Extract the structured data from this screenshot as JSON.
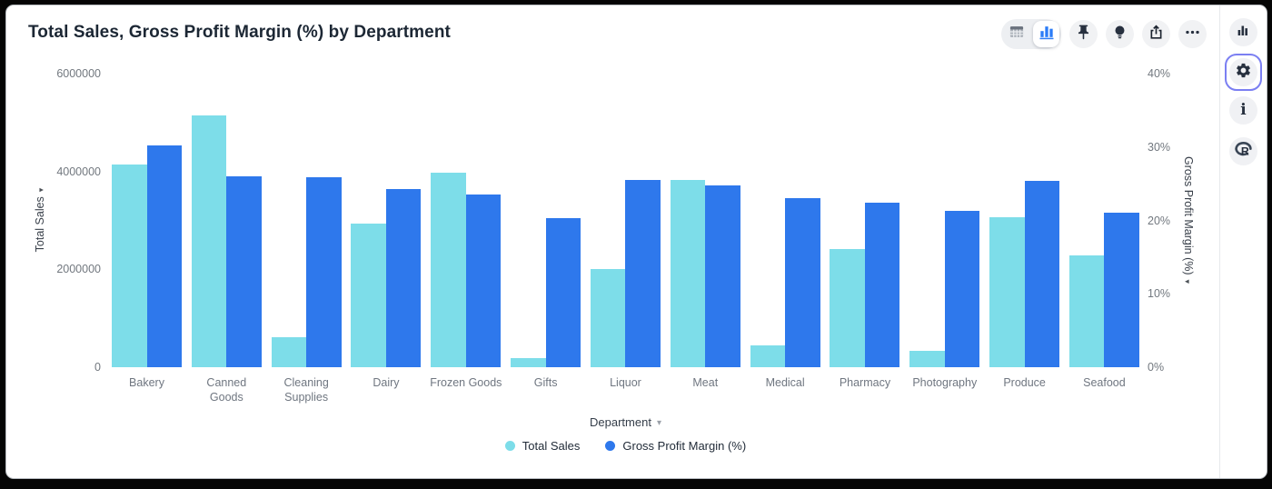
{
  "window": {
    "title": "Total Sales, Gross Profit Margin (%) by Department"
  },
  "toolbar": {
    "icons": [
      "table-view-toggle",
      "chart-view-toggle",
      "pin",
      "lightbulb",
      "export",
      "more-options"
    ],
    "selected_view": "chart",
    "accent_color": "#2b7cf7"
  },
  "sidebar": {
    "icons": [
      "chart-panel",
      "settings-gear",
      "info",
      "r-logo"
    ],
    "active": "settings-gear",
    "active_border_color": "#7b7ff2"
  },
  "chart_data": {
    "type": "bar",
    "title": "Total Sales, Gross Profit Margin (%) by Department",
    "xlabel": "Department",
    "grid": false,
    "legend_position": "bottom",
    "categories": [
      "Bakery",
      "Canned Goods",
      "Cleaning Supplies",
      "Dairy",
      "Frozen Goods",
      "Gifts",
      "Liquor",
      "Meat",
      "Medical",
      "Pharmacy",
      "Photography",
      "Produce",
      "Seafood"
    ],
    "series": [
      {
        "name": "Total Sales",
        "axis": "left",
        "color": "#7ddde9",
        "values": [
          4150000,
          5150000,
          620000,
          2930000,
          3980000,
          180000,
          2000000,
          3820000,
          440000,
          2420000,
          330000,
          3070000,
          2280000
        ]
      },
      {
        "name": "Gross Profit Margin (%)",
        "axis": "right",
        "color": "#2e78ec",
        "values": [
          30.2,
          26.0,
          25.9,
          24.3,
          23.5,
          20.3,
          25.5,
          24.8,
          23.0,
          22.4,
          21.3,
          25.4,
          21.1
        ]
      }
    ],
    "left_axis": {
      "label": "Total Sales",
      "max": 6000000,
      "ticks": [
        "6000000",
        "4000000",
        "2000000",
        "0"
      ]
    },
    "right_axis": {
      "label": "Gross Profit Margin (%)",
      "max": 40,
      "ticks": [
        "40%",
        "30%",
        "20%",
        "10%",
        "0%"
      ]
    }
  }
}
